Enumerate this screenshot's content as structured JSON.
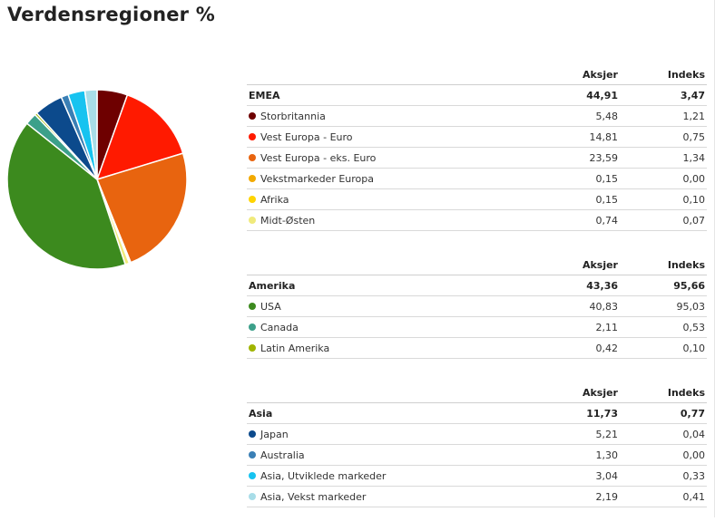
{
  "title": "Verdensregioner %",
  "header": {
    "col1": "Aksjer",
    "col2": "Indeks"
  },
  "groups": [
    {
      "name": "EMEA",
      "aksjer": "44,91",
      "indeks": "3,47",
      "items": [
        {
          "name": "Storbritannia",
          "aksjer": "5,48",
          "indeks": "1,21",
          "color": "#6e0000"
        },
        {
          "name": "Vest Europa - Euro",
          "aksjer": "14,81",
          "indeks": "0,75",
          "color": "#ff1a00"
        },
        {
          "name": "Vest Europa - eks. Euro",
          "aksjer": "23,59",
          "indeks": "1,34",
          "color": "#e8640f"
        },
        {
          "name": "Vekstmarkeder Europa",
          "aksjer": "0,15",
          "indeks": "0,00",
          "color": "#f2a900"
        },
        {
          "name": "Afrika",
          "aksjer": "0,15",
          "indeks": "0,10",
          "color": "#ffd400"
        },
        {
          "name": "Midt-Østen",
          "aksjer": "0,74",
          "indeks": "0,07",
          "color": "#f0ea7c"
        }
      ]
    },
    {
      "name": "Amerika",
      "aksjer": "43,36",
      "indeks": "95,66",
      "items": [
        {
          "name": "USA",
          "aksjer": "40,83",
          "indeks": "95,03",
          "color": "#3c8a1e"
        },
        {
          "name": "Canada",
          "aksjer": "2,11",
          "indeks": "0,53",
          "color": "#3ca08a"
        },
        {
          "name": "Latin Amerika",
          "aksjer": "0,42",
          "indeks": "0,10",
          "color": "#a0b400"
        }
      ]
    },
    {
      "name": "Asia",
      "aksjer": "11,73",
      "indeks": "0,77",
      "items": [
        {
          "name": "Japan",
          "aksjer": "5,21",
          "indeks": "0,04",
          "color": "#0c4a8c"
        },
        {
          "name": "Australia",
          "aksjer": "1,30",
          "indeks": "0,00",
          "color": "#3a7fb5"
        },
        {
          "name": "Asia, Utviklede markeder",
          "aksjer": "3,04",
          "indeks": "0,33",
          "color": "#17c3f0"
        },
        {
          "name": "Asia, Vekst markeder",
          "aksjer": "2,19",
          "indeks": "0,41",
          "color": "#a8dde8"
        }
      ]
    }
  ],
  "chart_data": {
    "type": "pie",
    "title": "Verdensregioner %",
    "categories": [
      "Storbritannia",
      "Vest Europa - Euro",
      "Vest Europa - eks. Euro",
      "Vekstmarkeder Europa",
      "Afrika",
      "Midt-Østen",
      "USA",
      "Canada",
      "Latin Amerika",
      "Japan",
      "Australia",
      "Asia, Utviklede markeder",
      "Asia, Vekst markeder"
    ],
    "values": [
      5.48,
      14.81,
      23.59,
      0.15,
      0.15,
      0.74,
      40.83,
      2.11,
      0.42,
      5.21,
      1.3,
      3.04,
      2.19
    ],
    "colors": [
      "#6e0000",
      "#ff1a00",
      "#e8640f",
      "#f2a900",
      "#ffd400",
      "#f0ea7c",
      "#3c8a1e",
      "#3ca08a",
      "#a0b400",
      "#0c4a8c",
      "#3a7fb5",
      "#17c3f0",
      "#a8dde8"
    ]
  }
}
